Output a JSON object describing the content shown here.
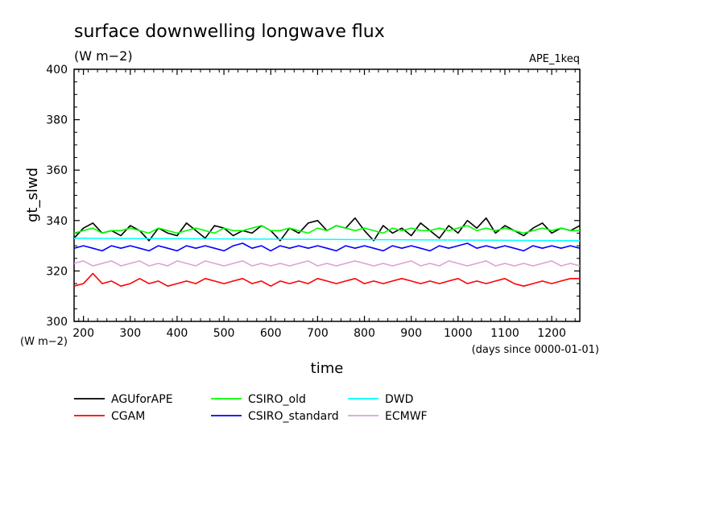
{
  "chart_data": {
    "type": "line",
    "title": "surface downwelling longwave flux",
    "units": "(W m−2)",
    "experiment": "APE_1keq",
    "xlabel": "time",
    "x_units": "(days since 0000-01-01)",
    "ylabel": "gt_slwd",
    "y_units": "(W m−2)",
    "xlim": [
      180,
      1260
    ],
    "ylim": [
      300,
      400
    ],
    "x_ticks": [
      200,
      300,
      400,
      500,
      600,
      700,
      800,
      900,
      1000,
      1100,
      1200
    ],
    "y_ticks": [
      300,
      320,
      340,
      360,
      380,
      400
    ],
    "grid": false,
    "legend_position": "bottom",
    "series": [
      {
        "name": "AGUforAPE",
        "color": "#000000",
        "x": [
          180,
          200,
          220,
          240,
          260,
          280,
          300,
          320,
          340,
          360,
          380,
          400,
          420,
          440,
          460,
          480,
          500,
          520,
          540,
          560,
          580,
          600,
          620,
          640,
          660,
          680,
          700,
          720,
          740,
          760,
          780,
          800,
          820,
          840,
          860,
          880,
          900,
          920,
          940,
          960,
          980,
          1000,
          1020,
          1040,
          1060,
          1080,
          1100,
          1120,
          1140,
          1160,
          1180,
          1200,
          1220,
          1240,
          1260
        ],
        "y": [
          333,
          337,
          339,
          335,
          336,
          334,
          338,
          336,
          332,
          337,
          335,
          334,
          339,
          336,
          333,
          338,
          337,
          334,
          336,
          335,
          338,
          336,
          332,
          337,
          335,
          339,
          340,
          336,
          338,
          337,
          341,
          336,
          332,
          338,
          335,
          337,
          334,
          339,
          336,
          333,
          338,
          335,
          340,
          337,
          341,
          335,
          338,
          336,
          334,
          337,
          339,
          335,
          337,
          336,
          338
        ]
      },
      {
        "name": "CGAM",
        "color": "#ff0000",
        "x": [
          180,
          200,
          220,
          240,
          260,
          280,
          300,
          320,
          340,
          360,
          380,
          400,
          420,
          440,
          460,
          480,
          500,
          520,
          540,
          560,
          580,
          600,
          620,
          640,
          660,
          680,
          700,
          720,
          740,
          760,
          780,
          800,
          820,
          840,
          860,
          880,
          900,
          920,
          940,
          960,
          980,
          1000,
          1020,
          1040,
          1060,
          1080,
          1100,
          1120,
          1140,
          1160,
          1180,
          1200,
          1220,
          1240,
          1260
        ],
        "y": [
          314,
          315,
          319,
          315,
          316,
          314,
          315,
          317,
          315,
          316,
          314,
          315,
          316,
          315,
          317,
          316,
          315,
          316,
          317,
          315,
          316,
          314,
          316,
          315,
          316,
          315,
          317,
          316,
          315,
          316,
          317,
          315,
          316,
          315,
          316,
          317,
          316,
          315,
          316,
          315,
          316,
          317,
          315,
          316,
          315,
          316,
          317,
          315,
          314,
          315,
          316,
          315,
          316,
          317,
          317
        ]
      },
      {
        "name": "CSIRO_old",
        "color": "#00ff00",
        "x": [
          180,
          200,
          220,
          240,
          260,
          280,
          300,
          320,
          340,
          360,
          380,
          400,
          420,
          440,
          460,
          480,
          500,
          520,
          540,
          560,
          580,
          600,
          620,
          640,
          660,
          680,
          700,
          720,
          740,
          760,
          780,
          800,
          820,
          840,
          860,
          880,
          900,
          920,
          940,
          960,
          980,
          1000,
          1020,
          1040,
          1060,
          1080,
          1100,
          1120,
          1140,
          1160,
          1180,
          1200,
          1220,
          1240,
          1260
        ],
        "y": [
          335,
          336,
          337,
          335,
          336,
          336,
          337,
          336,
          335,
          337,
          336,
          335,
          336,
          337,
          336,
          335,
          337,
          336,
          336,
          337,
          338,
          336,
          336,
          337,
          336,
          335,
          337,
          336,
          338,
          337,
          336,
          337,
          336,
          335,
          337,
          336,
          337,
          336,
          336,
          337,
          336,
          337,
          338,
          336,
          337,
          336,
          337,
          336,
          335,
          336,
          337,
          336,
          337,
          336,
          336
        ]
      },
      {
        "name": "CSIRO_standard",
        "color": "#0000ff",
        "x": [
          180,
          200,
          220,
          240,
          260,
          280,
          300,
          320,
          340,
          360,
          380,
          400,
          420,
          440,
          460,
          480,
          500,
          520,
          540,
          560,
          580,
          600,
          620,
          640,
          660,
          680,
          700,
          720,
          740,
          760,
          780,
          800,
          820,
          840,
          860,
          880,
          900,
          920,
          940,
          960,
          980,
          1000,
          1020,
          1040,
          1060,
          1080,
          1100,
          1120,
          1140,
          1160,
          1180,
          1200,
          1220,
          1240,
          1260
        ],
        "y": [
          329,
          330,
          329,
          328,
          330,
          329,
          330,
          329,
          328,
          330,
          329,
          328,
          330,
          329,
          330,
          329,
          328,
          330,
          331,
          329,
          330,
          328,
          330,
          329,
          330,
          329,
          330,
          329,
          328,
          330,
          329,
          330,
          329,
          328,
          330,
          329,
          330,
          329,
          328,
          330,
          329,
          330,
          331,
          329,
          330,
          329,
          330,
          329,
          328,
          330,
          329,
          330,
          329,
          330,
          329
        ]
      },
      {
        "name": "DWD",
        "color": "#00ffff",
        "x": [
          180,
          1260
        ],
        "y": [
          333,
          332
        ]
      },
      {
        "name": "ECMWF",
        "color": "#dda0dd",
        "x": [
          180,
          200,
          220,
          240,
          260,
          280,
          300,
          320,
          340,
          360,
          380,
          400,
          420,
          440,
          460,
          480,
          500,
          520,
          540,
          560,
          580,
          600,
          620,
          640,
          660,
          680,
          700,
          720,
          740,
          760,
          780,
          800,
          820,
          840,
          860,
          880,
          900,
          920,
          940,
          960,
          980,
          1000,
          1020,
          1040,
          1060,
          1080,
          1100,
          1120,
          1140,
          1160,
          1180,
          1200,
          1220,
          1240,
          1260
        ],
        "y": [
          323,
          324,
          322,
          323,
          324,
          322,
          323,
          324,
          322,
          323,
          322,
          324,
          323,
          322,
          324,
          323,
          322,
          323,
          324,
          322,
          323,
          322,
          323,
          322,
          323,
          324,
          322,
          323,
          322,
          323,
          324,
          323,
          322,
          323,
          322,
          323,
          324,
          322,
          323,
          322,
          324,
          323,
          322,
          323,
          324,
          322,
          323,
          322,
          323,
          322,
          323,
          324,
          322,
          323,
          322
        ]
      }
    ]
  }
}
